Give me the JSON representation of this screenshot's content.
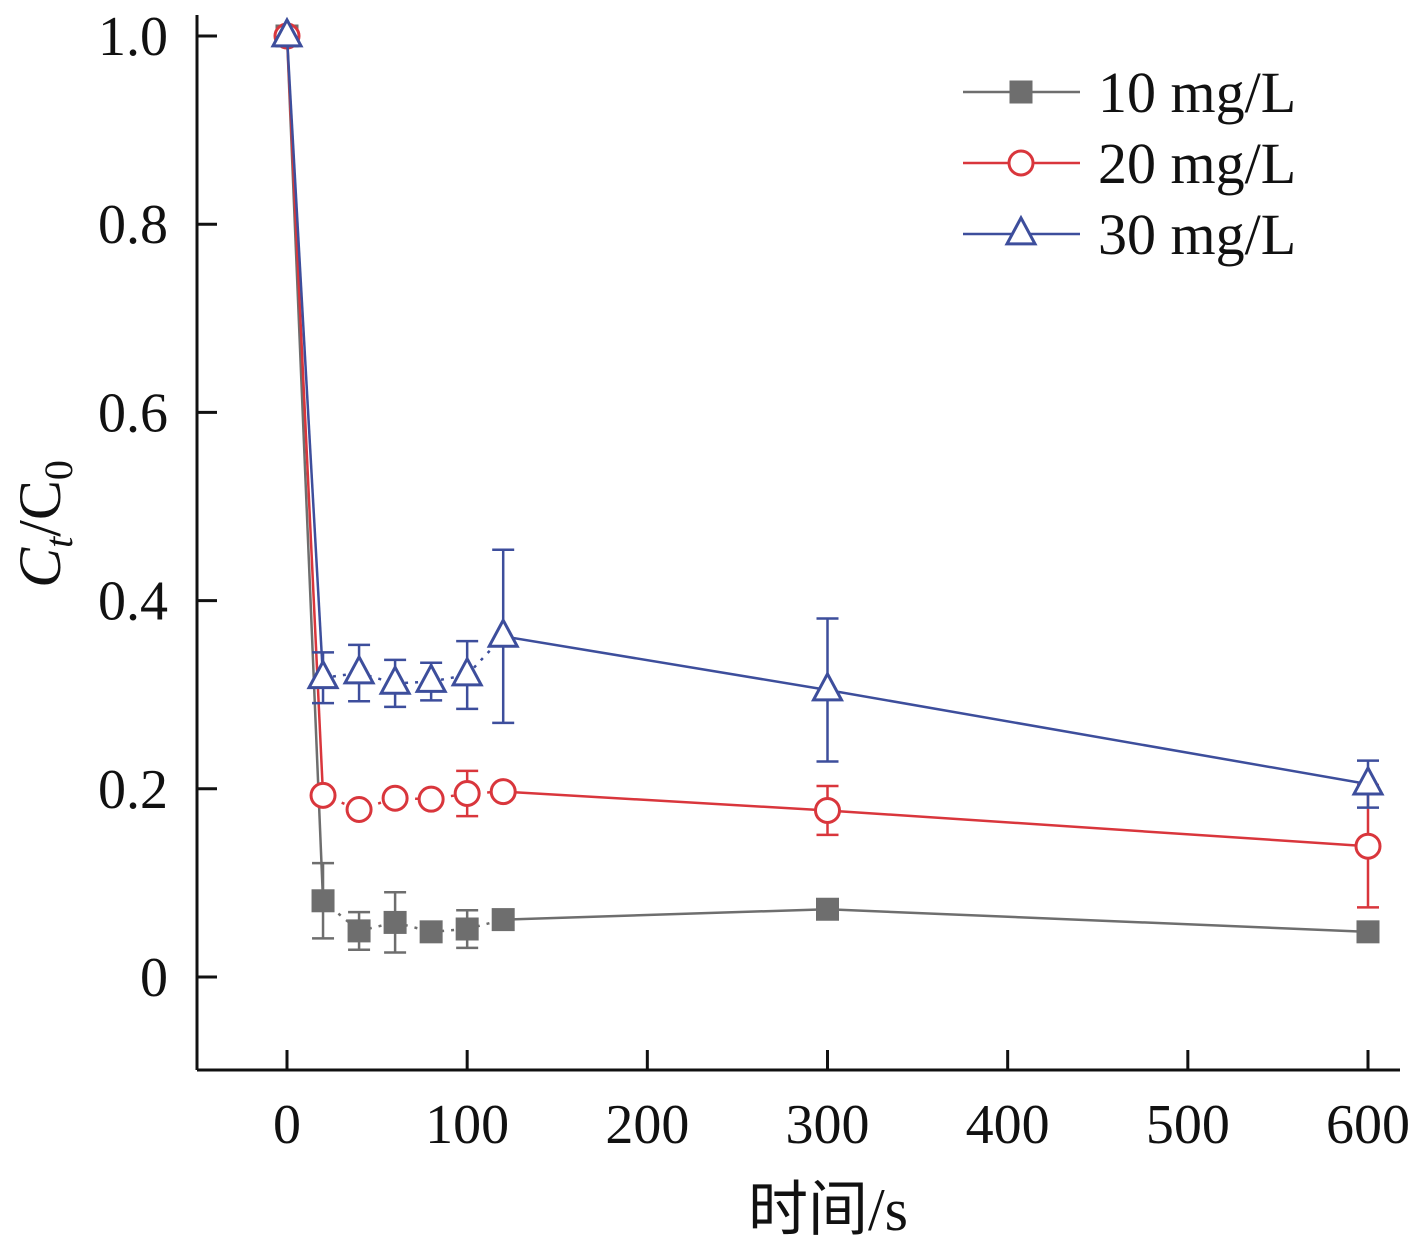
{
  "chart_data": {
    "type": "line",
    "title": "",
    "xlabel": "时间/s",
    "ylabel": {
      "main": "C",
      "sub1": "t",
      "mid": "/C",
      "sub2": "0"
    },
    "x_axis": {
      "range": [
        -50,
        630
      ],
      "ticks": [
        0,
        100,
        200,
        300,
        400,
        500,
        600
      ],
      "tick_labels": [
        "0",
        "100",
        "200",
        "300",
        "400",
        "500",
        "600"
      ]
    },
    "y_axis": {
      "range": [
        -0.1,
        1.0
      ],
      "ticks": [
        0,
        0.2,
        0.4,
        0.6,
        0.8,
        1.0
      ],
      "tick_labels": [
        "0",
        "0.2",
        "0.4",
        "0.6",
        "0.8",
        "1.0"
      ]
    },
    "grid": false,
    "legend_position": "top-right",
    "series": [
      {
        "name": "10 mg/L",
        "color": "#6e6e6e",
        "marker": "square-filled",
        "x": [
          0,
          20,
          40,
          60,
          80,
          100,
          120,
          300,
          600
        ],
        "y": [
          1.0,
          0.081,
          0.049,
          0.058,
          0.048,
          0.051,
          0.061,
          0.072,
          0.048
        ],
        "err": [
          0,
          0.04,
          0.02,
          0.032,
          0.0,
          0.02,
          0.0,
          0.0,
          0.0
        ]
      },
      {
        "name": "20 mg/L",
        "color": "#d9363c",
        "marker": "circle-open",
        "x": [
          0,
          20,
          40,
          60,
          80,
          100,
          120,
          300,
          600
        ],
        "y": [
          1.0,
          0.193,
          0.178,
          0.19,
          0.189,
          0.195,
          0.197,
          0.177,
          0.139
        ],
        "err": [
          0,
          0.0,
          0.0,
          0.0,
          0.0,
          0.024,
          0.0,
          0.026,
          0.065
        ]
      },
      {
        "name": "30 mg/L",
        "color": "#3d4e9c",
        "marker": "triangle-open",
        "x": [
          0,
          20,
          40,
          60,
          80,
          100,
          120,
          300,
          600
        ],
        "y": [
          1.0,
          0.318,
          0.323,
          0.312,
          0.314,
          0.321,
          0.362,
          0.305,
          0.205
        ],
        "err": [
          0,
          0.027,
          0.03,
          0.025,
          0.02,
          0.036,
          0.092,
          0.076,
          0.025
        ]
      }
    ]
  }
}
